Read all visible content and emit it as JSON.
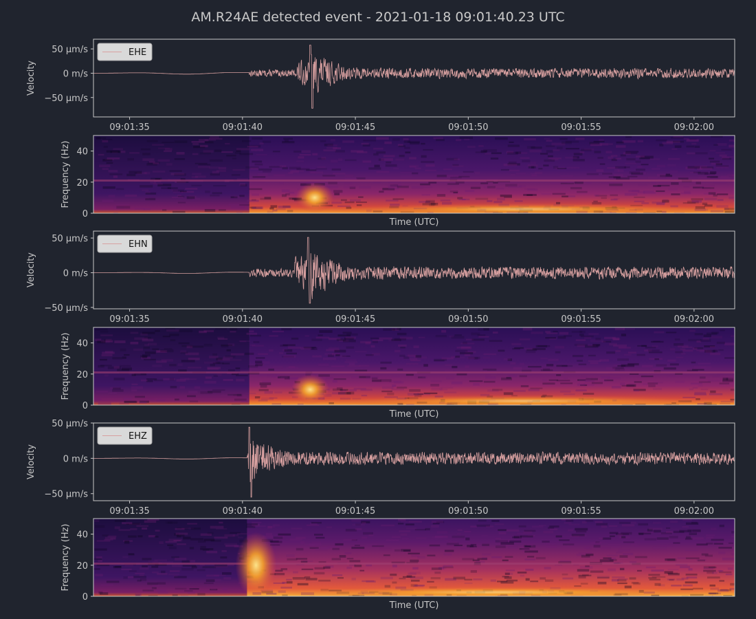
{
  "figure_title": "AM.R24AE detected event - 2021-01-18 09:01:40.23 UTC",
  "colors": {
    "background": "#20242e",
    "trace": "#d8a0a0",
    "axes": "#c8c8c8",
    "legend_bg": "#d9d9d9"
  },
  "chart_data": [
    {
      "type": "line",
      "channel": "EHE",
      "legend": "EHE",
      "ylabel": "Velocity",
      "yticks": [
        "50 µm/s",
        "0 m/s",
        "−50 µm/s"
      ],
      "ytick_values": [
        50,
        0,
        -50
      ],
      "ylim": [
        -90,
        70
      ],
      "xticks": [
        "09:01:35",
        "09:01:40",
        "09:01:45",
        "09:01:50",
        "09:01:55",
        "09:02:00"
      ],
      "xlim_seconds": [
        33.4,
        61.8
      ],
      "onset_s": 40.3,
      "peak_s": 43.0,
      "peak_max": 58,
      "peak_min": -72,
      "coda_amplitude": 12,
      "pre_event_amplitude": 2
    },
    {
      "type": "heatmap",
      "channel": "EHE",
      "ylabel": "Frequency (Hz)",
      "xlabel": "Time (UTC)",
      "yticks": [
        "0",
        "20",
        "40"
      ],
      "ylim": [
        0,
        50
      ],
      "colormap": "inferno",
      "onset_s": 40.3,
      "energy_peak_s": 43.2,
      "energy_peak_hz": 10
    },
    {
      "type": "line",
      "channel": "EHN",
      "legend": "EHN",
      "ylabel": "Velocity",
      "yticks": [
        "50 µm/s",
        "0 m/s",
        "−50 µm/s"
      ],
      "ytick_values": [
        50,
        0,
        -50
      ],
      "ylim": [
        -52,
        60
      ],
      "xticks": [
        "09:01:35",
        "09:01:40",
        "09:01:45",
        "09:01:50",
        "09:01:55",
        "09:02:00"
      ],
      "xlim_seconds": [
        33.4,
        61.8
      ],
      "onset_s": 40.3,
      "peak_s": 42.9,
      "peak_max": 51,
      "peak_min": -44,
      "coda_amplitude": 10,
      "pre_event_amplitude": 1
    },
    {
      "type": "heatmap",
      "channel": "EHN",
      "ylabel": "Frequency (Hz)",
      "xlabel": "Time (UTC)",
      "yticks": [
        "0",
        "20",
        "40"
      ],
      "ylim": [
        0,
        50
      ],
      "colormap": "inferno",
      "onset_s": 40.3,
      "energy_peak_s": 43.0,
      "energy_peak_hz": 10
    },
    {
      "type": "line",
      "channel": "EHZ",
      "legend": "EHZ",
      "ylabel": "Velocity",
      "yticks": [
        "50 µm/s",
        "0 m/s",
        "−50 µm/s"
      ],
      "ytick_values": [
        50,
        0,
        -50
      ],
      "ylim": [
        -60,
        50
      ],
      "xticks": [
        "09:01:35",
        "09:01:40",
        "09:01:45",
        "09:01:50",
        "09:01:55",
        "09:02:00"
      ],
      "xlim_seconds": [
        33.4,
        61.8
      ],
      "onset_s": 40.2,
      "peak_s": 40.3,
      "peak_max": 44,
      "peak_min": -55,
      "coda_amplitude": 10,
      "pre_event_amplitude": 1
    },
    {
      "type": "heatmap",
      "channel": "EHZ",
      "ylabel": "Frequency (Hz)",
      "xlabel": "Time (UTC)",
      "yticks": [
        "0",
        "20",
        "40"
      ],
      "ylim": [
        0,
        50
      ],
      "colormap": "inferno",
      "onset_s": 40.2,
      "energy_peak_s": 40.6,
      "energy_peak_hz": 20
    }
  ]
}
